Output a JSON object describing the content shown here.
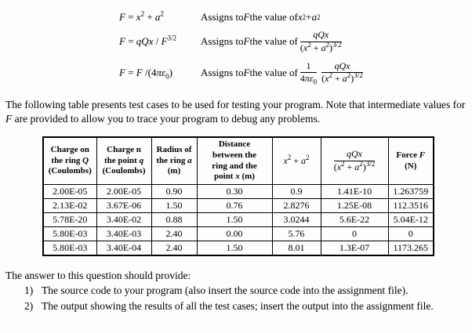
{
  "formulas": [
    {
      "lhs": [
        [
          "i",
          "F"
        ],
        [
          "t",
          " = "
        ],
        [
          "i",
          "x"
        ],
        [
          "s",
          "2"
        ],
        [
          "t",
          " + "
        ],
        [
          "i",
          "a"
        ],
        [
          "s",
          "2"
        ]
      ],
      "desc": [
        [
          "t",
          "Assigns to "
        ],
        [
          "i",
          "F"
        ],
        [
          "t",
          " the value of  "
        ],
        [
          "i",
          "x"
        ],
        [
          "s",
          "2"
        ],
        [
          "t",
          " + "
        ],
        [
          "i",
          "a"
        ],
        [
          "s",
          "2"
        ]
      ]
    },
    {
      "lhs": [
        [
          "i",
          "F"
        ],
        [
          "t",
          " = "
        ],
        [
          "i",
          "qQx"
        ],
        [
          "t",
          " / "
        ],
        [
          "i",
          "F"
        ],
        [
          "s",
          "3/2"
        ]
      ],
      "desc": [
        [
          "t",
          "Assigns to "
        ],
        [
          "i",
          "F"
        ],
        [
          "t",
          " the value of  "
        ],
        [
          "f",
          [
            [
              "i",
              "qQx"
            ]
          ],
          [
            [
              "t",
              "("
            ],
            [
              "i",
              "x"
            ],
            [
              "s",
              "2"
            ],
            [
              "t",
              " + "
            ],
            [
              "i",
              "a"
            ],
            [
              "s",
              "2"
            ],
            [
              "t",
              ")"
            ],
            [
              "s",
              "3/2"
            ]
          ]
        ]
      ]
    },
    {
      "lhs": [
        [
          "i",
          "F"
        ],
        [
          "t",
          " = "
        ],
        [
          "i",
          "F"
        ],
        [
          "t",
          " /(4"
        ],
        [
          "i",
          "πε"
        ],
        [
          "b",
          "0"
        ],
        [
          "t",
          ")"
        ]
      ],
      "desc": [
        [
          "t",
          "Assigns to "
        ],
        [
          "i",
          "F"
        ],
        [
          "t",
          " the value of  "
        ],
        [
          "f",
          [
            [
              "t",
              "1"
            ]
          ],
          [
            [
              "t",
              "4"
            ],
            [
              "i",
              "πε"
            ],
            [
              "b",
              "0"
            ]
          ]
        ],
        [
          "t",
          " "
        ],
        [
          "f",
          [
            [
              "i",
              "qQx"
            ]
          ],
          [
            [
              "t",
              "("
            ],
            [
              "i",
              "x"
            ],
            [
              "s",
              "2"
            ],
            [
              "t",
              " + "
            ],
            [
              "i",
              "a"
            ],
            [
              "s",
              "2"
            ],
            [
              "t",
              ")"
            ],
            [
              "s",
              "3/2"
            ]
          ]
        ]
      ]
    }
  ],
  "intro": [
    [
      "t",
      "The following table presents test cases to be used for testing your program.  Note that intermediate values for "
    ],
    [
      "i",
      "F"
    ],
    [
      "t",
      " are provided to allow you to trace your program to debug any problems."
    ]
  ],
  "table": {
    "headers": [
      {
        "lines": [
          [
            [
              "t",
              "Charge on"
            ]
          ],
          [
            [
              "t",
              "the ring "
            ],
            [
              "i",
              "Q"
            ]
          ],
          [
            [
              "t",
              "(Coulombs)"
            ]
          ]
        ]
      },
      {
        "lines": [
          [
            [
              "t",
              "Charge n"
            ]
          ],
          [
            [
              "t",
              "the point "
            ],
            [
              "i",
              "q"
            ]
          ],
          [
            [
              "t",
              "(Coulombs)"
            ]
          ]
        ]
      },
      {
        "lines": [
          [
            [
              "t",
              "Radius of"
            ]
          ],
          [
            [
              "t",
              "the ring "
            ],
            [
              "i",
              "a"
            ]
          ],
          [
            [
              "t",
              "(m)"
            ]
          ]
        ]
      },
      {
        "lines": [
          [
            [
              "t",
              "Distance"
            ]
          ],
          [
            [
              "t",
              "between the"
            ]
          ],
          [
            [
              "t",
              "ring and the"
            ]
          ],
          [
            [
              "t",
              "point "
            ],
            [
              "i",
              "x"
            ],
            [
              "t",
              " (m)"
            ]
          ]
        ]
      },
      {
        "lines": [
          [
            [
              "i",
              "x"
            ],
            [
              "s",
              "2"
            ],
            [
              "t",
              " + "
            ],
            [
              "i",
              "a"
            ],
            [
              "s",
              "2"
            ]
          ]
        ]
      },
      {
        "lines": [
          [
            [
              "f",
              [
                [
                  "i",
                  "qQx"
                ]
              ],
              [
                [
                  "t",
                  "("
                ],
                [
                  "i",
                  "x"
                ],
                [
                  "s",
                  "2"
                ],
                [
                  "t",
                  " + "
                ],
                [
                  "i",
                  "a"
                ],
                [
                  "s",
                  "2"
                ],
                [
                  "t",
                  ")"
                ],
                [
                  "s",
                  "3/2"
                ]
              ]
            ]
          ]
        ]
      },
      {
        "lines": [
          [
            [
              "t",
              "Force "
            ],
            [
              "i",
              "F"
            ]
          ],
          [
            [
              "t",
              "(N)"
            ]
          ]
        ]
      }
    ],
    "rows": [
      [
        "2.00E-05",
        "2.00E-05",
        "0.90",
        "0.30",
        "0.9",
        "1.41E-10",
        "1.263759"
      ],
      [
        "2.13E-02",
        "3.67E-06",
        "1.50",
        "0.76",
        "2.8276",
        "1.25E-08",
        "112.3516"
      ],
      [
        "5.78E-20",
        "3.40E-02",
        "0.88",
        "1.50",
        "3.0244",
        "5.6E-22",
        "5.04E-12"
      ],
      [
        "5.80E-03",
        "3.40E-03",
        "2.40",
        "0.00",
        "5.76",
        "0",
        "0"
      ],
      [
        "5.80E-03",
        "3.40E-04",
        "2.40",
        "1.50",
        "8.01",
        "1.3E-07",
        "1173.265"
      ]
    ]
  },
  "closing": {
    "intro": "The answer to this question should provide:",
    "items": [
      {
        "num": "1)",
        "text": "The source code to your program (also insert the source code into the assignment file)."
      },
      {
        "num": "2)",
        "text": "The output showing the results of all the test cases; insert the output into the assignment file."
      }
    ]
  }
}
